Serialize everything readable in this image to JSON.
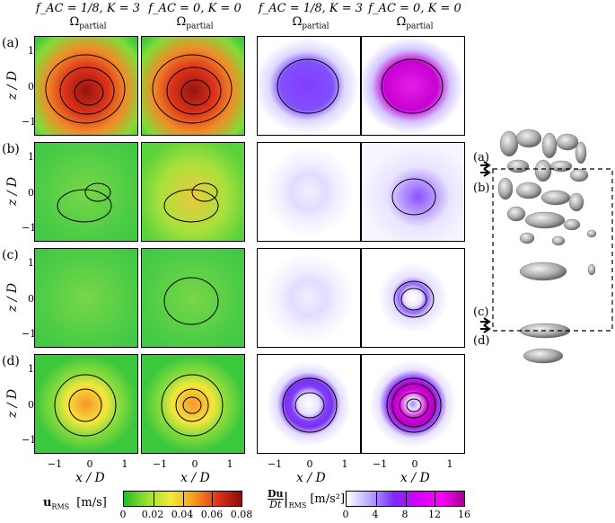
{
  "columns": [
    {
      "line1": "f_AC = 1/8, K = 3",
      "line2": "Ω",
      "line2_sub": "partial"
    },
    {
      "line1": "f_AC = 0, K = 0",
      "line2": "Ω",
      "line2_sub": "partial"
    },
    {
      "line1": "f_AC = 1/8, K = 3",
      "line2": "Ω",
      "line2_sub": "partial"
    },
    {
      "line1": "f_AC = 0, K = 0",
      "line2": "Ω",
      "line2_sub": "partial"
    }
  ],
  "rows": [
    "(a)",
    "(b)",
    "(c)",
    "(d)"
  ],
  "y_axis_label": "z / D",
  "y_ticks": [
    "1",
    "0",
    "−1"
  ],
  "x_axis_label": "x / D",
  "x_ticks": [
    "−1",
    "0",
    "1"
  ],
  "side_labels": [
    "(a)",
    "(b)",
    "(c)",
    "(d)"
  ],
  "colorbar_u": {
    "label": "u",
    "label_sub": "RMS",
    "unit": "[m/s]",
    "ticks": [
      "0",
      "0.02",
      "0.04",
      "0.06",
      "0.08"
    ],
    "colors": [
      "#1fbf2a",
      "#9be030",
      "#f3ea3a",
      "#f59a1f",
      "#e0301a",
      "#8c0c0c"
    ]
  },
  "colorbar_a": {
    "label_num": "Du",
    "label_den": "Dt",
    "label_sub": "RMS",
    "unit": "[m/s²]",
    "ticks": [
      "0",
      "4",
      "8",
      "12",
      "16"
    ],
    "colors": [
      "#ffffff",
      "#b9a6ff",
      "#7a2cff",
      "#d100ff",
      "#ff00ff",
      "#a4008f"
    ]
  },
  "panel_levels": {
    "u_col1": [
      0.95,
      0.35,
      0.15,
      0.5
    ],
    "u_col2": [
      0.85,
      0.5,
      0.35,
      0.65
    ],
    "a_col3": [
      0.55,
      0.15,
      0.1,
      0.55
    ],
    "a_col4": [
      0.8,
      0.45,
      0.45,
      0.9
    ]
  }
}
